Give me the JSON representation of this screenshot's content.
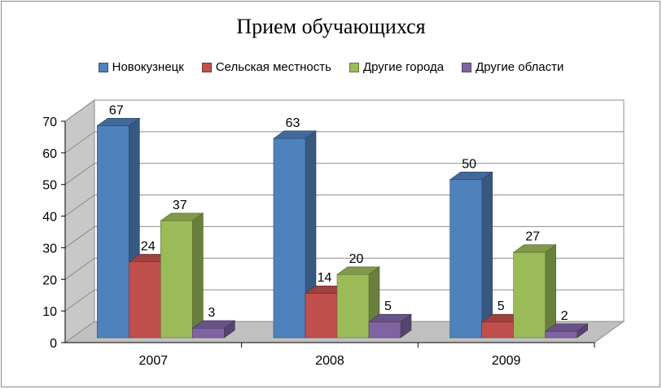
{
  "chart_data": {
    "type": "bar",
    "title": "Прием обучающихся",
    "categories": [
      "2007",
      "2008",
      "2009"
    ],
    "series": [
      {
        "name": "Новокузнецк",
        "values": [
          67,
          63,
          50
        ],
        "color": "#4f81bd"
      },
      {
        "name": "Сельская местность",
        "values": [
          24,
          14,
          5
        ],
        "color": "#c0504d"
      },
      {
        "name": "Другие города",
        "values": [
          37,
          20,
          27
        ],
        "color": "#9bbb59"
      },
      {
        "name": "Другие области",
        "values": [
          3,
          5,
          2
        ],
        "color": "#8064a2"
      }
    ],
    "ylim": [
      0,
      70
    ],
    "yticks": [
      0,
      10,
      20,
      30,
      40,
      50,
      60,
      70
    ],
    "legend_position": "top",
    "grid": true,
    "style": "3d-clustered-column"
  }
}
